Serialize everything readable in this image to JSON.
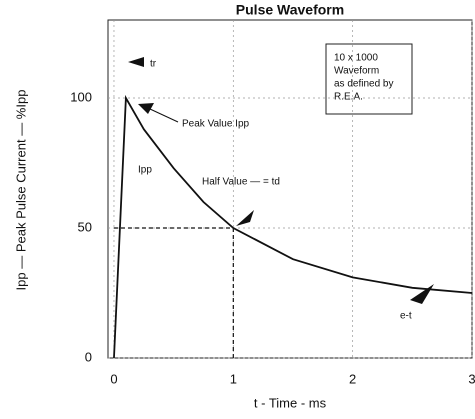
{
  "chart_data": {
    "type": "line",
    "title": "Pulse Waveform",
    "x_label": "t - Time - ms",
    "y_label": "Ipp — Peak Pulse Current — %Ipp",
    "x": [
      0,
      0.1,
      0.25,
      0.5,
      0.75,
      1,
      1.5,
      2,
      2.5,
      3
    ],
    "series": [
      {
        "name": "10 x 1000 Waveform",
        "color": "#111111",
        "values": [
          0,
          100,
          88,
          73,
          60,
          50,
          38,
          31,
          27,
          25
        ]
      }
    ],
    "xlim": [
      -0.05,
      3
    ],
    "ylim": [
      0,
      130
    ],
    "xticks": [
      0,
      1,
      2,
      3
    ],
    "yticks": [
      0,
      50,
      100
    ],
    "grid": true,
    "annotations": {
      "rise": "tr",
      "peak": "Peak Value Ipp",
      "ipp": "Ipp",
      "half": "Half Value — = td",
      "exp": "e-t",
      "box": [
        "10 x 1000",
        "Waveform",
        "as defined by",
        "R.E.A."
      ]
    }
  }
}
